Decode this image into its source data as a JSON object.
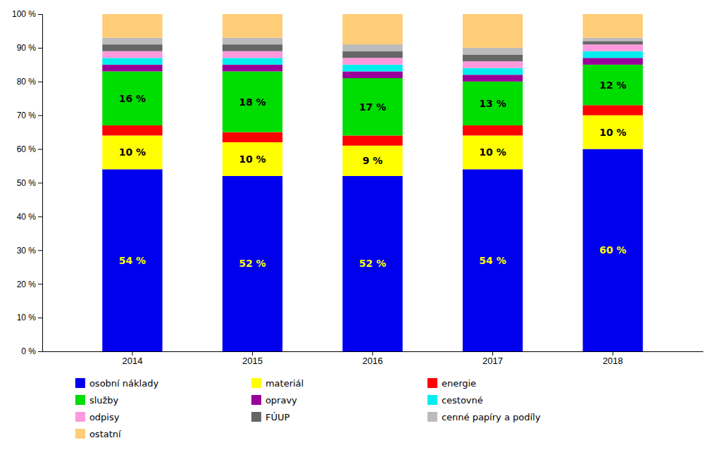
{
  "chart_data": {
    "type": "bar",
    "stacked": true,
    "categories": [
      "2014",
      "2015",
      "2016",
      "2017",
      "2018"
    ],
    "series": [
      {
        "name": "osobní náklady",
        "color": "#0000EE",
        "values": [
          54,
          52,
          52,
          54,
          60
        ],
        "data_labels": true,
        "value_labels": [
          "54 %",
          "52 %",
          "52 %",
          "54 %",
          "60 %"
        ]
      },
      {
        "name": "materiál",
        "color": "#FFFF00",
        "values": [
          10,
          10,
          9,
          10,
          10
        ],
        "data_labels": true,
        "value_labels": [
          "10 %",
          "10 %",
          "9 %",
          "10 %",
          "10 %"
        ]
      },
      {
        "name": "energie",
        "color": "#FF0000",
        "values": [
          3,
          3,
          3,
          3,
          3
        ]
      },
      {
        "name": "služby",
        "color": "#00DD00",
        "values": [
          16,
          18,
          17,
          13,
          12
        ],
        "data_labels": true,
        "value_labels": [
          "16 %",
          "18 %",
          "17 %",
          "13 %",
          "12 %"
        ]
      },
      {
        "name": "opravy",
        "color": "#990099",
        "values": [
          2,
          2,
          2,
          2,
          2
        ]
      },
      {
        "name": "cestovné",
        "color": "#00EEEE",
        "values": [
          2,
          2,
          2,
          2,
          2
        ]
      },
      {
        "name": "odpisy",
        "color": "#FF99DD",
        "values": [
          2,
          2,
          2,
          2,
          2
        ]
      },
      {
        "name": "FÚUP",
        "color": "#666666",
        "values": [
          2,
          2,
          2,
          2,
          1
        ]
      },
      {
        "name": "cenné papíry a podíly",
        "color": "#BBBBBB",
        "values": [
          2,
          2,
          2,
          2,
          1
        ]
      },
      {
        "name": "ostatní",
        "color": "#FFCC77",
        "values": [
          7,
          7,
          9,
          10,
          7
        ]
      }
    ],
    "ylim": [
      0,
      100
    ],
    "yticks": [
      {
        "value": 0,
        "label": "0 %"
      },
      {
        "value": 10,
        "label": "10 %"
      },
      {
        "value": 20,
        "label": "20 %"
      },
      {
        "value": 30,
        "label": "30 %"
      },
      {
        "value": 40,
        "label": "40 %"
      },
      {
        "value": 50,
        "label": "50 %"
      },
      {
        "value": 60,
        "label": "60 %"
      },
      {
        "value": 70,
        "label": "70 %"
      },
      {
        "value": 80,
        "label": "80 %"
      },
      {
        "value": 90,
        "label": "90 %"
      },
      {
        "value": 100,
        "label": "100 %"
      }
    ],
    "grid": false,
    "legend": "bottom"
  }
}
